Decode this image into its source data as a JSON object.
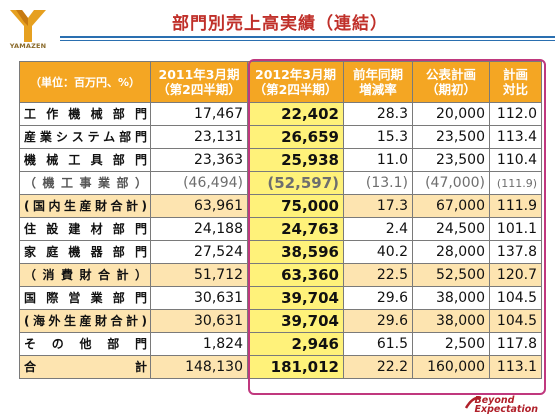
{
  "brand": {
    "logo_text": "YAMAZEN",
    "tagline_line1": "Beyond",
    "tagline_line2": "Expectation"
  },
  "title": "部門別売上高実績（連結）",
  "table": {
    "header": {
      "unit": "（単位：百万円、%）",
      "col1_line1": "2011年3月期",
      "col1_line2": "（第2四半期）",
      "col2_line1": "2012年3月期",
      "col2_line2": "（第2四半期）",
      "col3_line1": "前年同期",
      "col3_line2": "増減率",
      "col4_line1": "公表計画",
      "col4_line2": "（期初）",
      "col5_line1": "計画",
      "col5_line2": "対比"
    },
    "rows": [
      {
        "label": "工作機械部門",
        "c1": "17,467",
        "c2": "22,402",
        "c3": "28.3",
        "c4": "20,000",
        "c5": "112.0"
      },
      {
        "label": "産業システム部門",
        "c1": "23,131",
        "c2": "26,659",
        "c3": "15.3",
        "c4": "23,500",
        "c5": "113.4"
      },
      {
        "label": "機械工具部門",
        "c1": "23,363",
        "c2": "25,938",
        "c3": "11.0",
        "c4": "23,500",
        "c5": "110.4"
      },
      {
        "label": "（機工事業部）",
        "c1": "(46,494)",
        "c2": "(52,597)",
        "c3": "(13.1)",
        "c4": "(47,000)",
        "c5": "(111.9)"
      },
      {
        "label": "(国内生産財合計)",
        "c1": "63,961",
        "c2": "75,000",
        "c3": "17.3",
        "c4": "67,000",
        "c5": "111.9"
      },
      {
        "label": "住設建材部門",
        "c1": "24,188",
        "c2": "24,763",
        "c3": "2.4",
        "c4": "24,500",
        "c5": "101.1"
      },
      {
        "label": "家庭機器部門",
        "c1": "27,524",
        "c2": "38,596",
        "c3": "40.2",
        "c4": "28,000",
        "c5": "137.8"
      },
      {
        "label": "（消費財合計）",
        "c1": "51,712",
        "c2": "63,360",
        "c3": "22.5",
        "c4": "52,500",
        "c5": "120.7"
      },
      {
        "label": "国際営業部門",
        "c1": "30,631",
        "c2": "39,704",
        "c3": "29.6",
        "c4": "38,000",
        "c5": "104.5"
      },
      {
        "label": "(海外生産財合計)",
        "c1": "30,631",
        "c2": "39,704",
        "c3": "29.6",
        "c4": "38,000",
        "c5": "104.5"
      },
      {
        "label": "その他部門",
        "c1": "1,824",
        "c2": "2,946",
        "c3": "61.5",
        "c4": "2,500",
        "c5": "117.8"
      },
      {
        "label": "合計",
        "c1": "148,130",
        "c2": "181,012",
        "c3": "22.2",
        "c4": "160,000",
        "c5": "113.1"
      }
    ]
  },
  "colors": {
    "header_orange": "#f4a623",
    "subtotal_row": "#fde4b0",
    "highlight_yellow": "#fff27a",
    "frame_magenta": "#c0387e",
    "title_red": "#c0302a"
  }
}
